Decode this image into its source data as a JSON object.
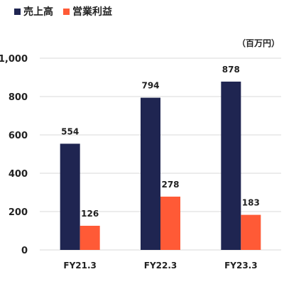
{
  "chart_data": {
    "type": "bar",
    "unit_label": "（百万円）",
    "categories": [
      "FY21.3",
      "FY22.3",
      "FY23.3"
    ],
    "series": [
      {
        "name": "売上高",
        "color": "#1f2551",
        "values": [
          554,
          794,
          878
        ]
      },
      {
        "name": "営業利益",
        "color": "#ff5a36",
        "values": [
          126,
          278,
          183
        ]
      }
    ],
    "ylim": [
      0,
      1000
    ],
    "yticks": [
      0,
      200,
      400,
      600,
      800,
      1000
    ],
    "ytick_labels": [
      "0",
      "200",
      "400",
      "600",
      "800",
      "1,000"
    ],
    "grid": true,
    "legend_position": "top-left"
  }
}
